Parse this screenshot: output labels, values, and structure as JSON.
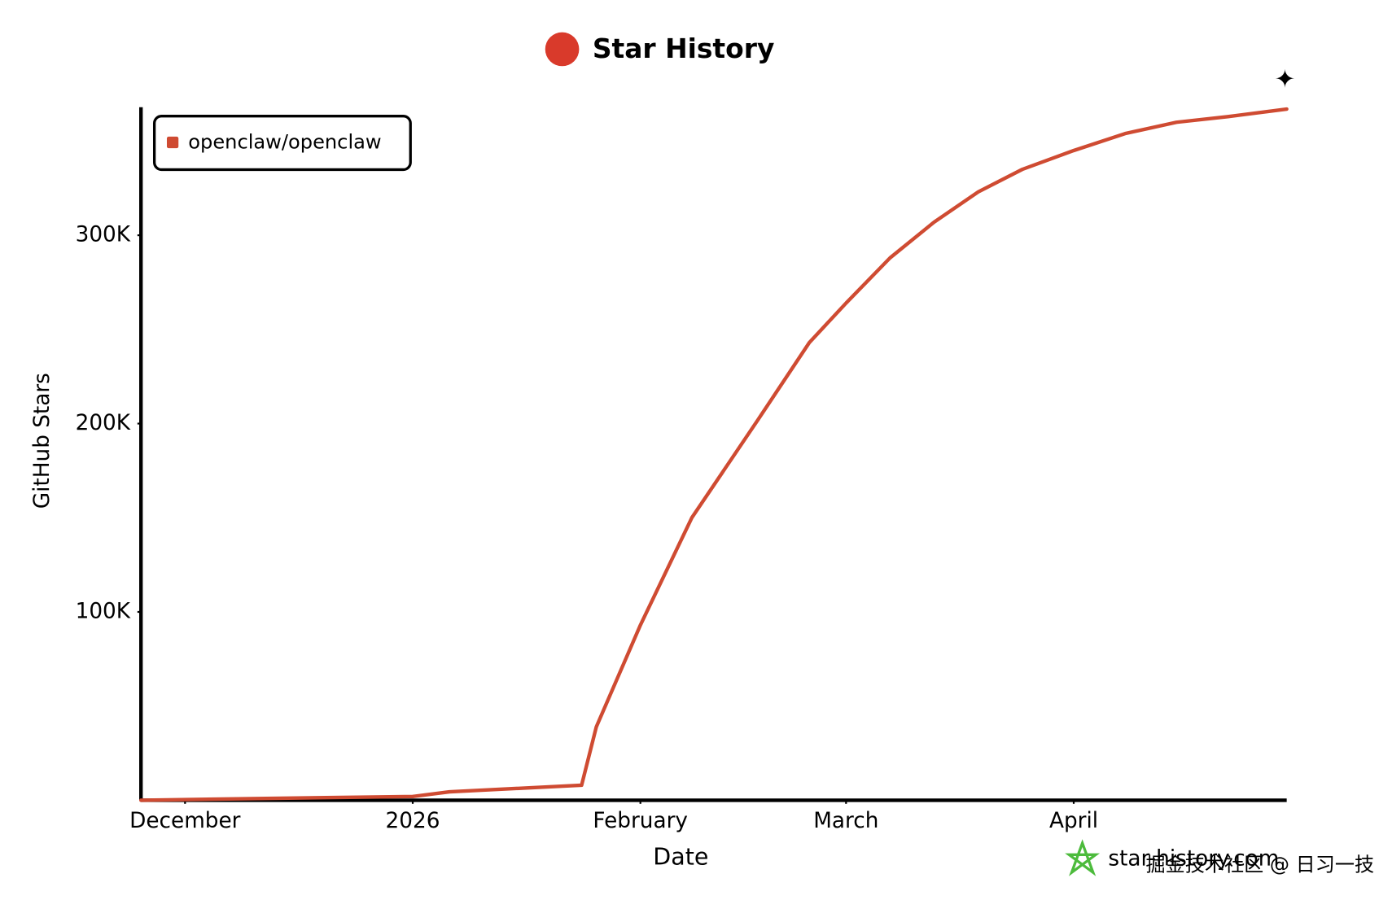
{
  "chart_data": {
    "type": "line",
    "title": "Star History",
    "xlabel": "Date",
    "ylabel": "GitHub Stars",
    "x": [
      "2025-11-25",
      "2025-12-12",
      "2026-01-01",
      "2026-01-06",
      "2026-01-19",
      "2026-01-24",
      "2026-01-26",
      "2026-02-01",
      "2026-02-08",
      "2026-02-17",
      "2026-02-24",
      "2026-03-01",
      "2026-03-07",
      "2026-03-13",
      "2026-03-19",
      "2026-03-25",
      "2026-04-01",
      "2026-04-08",
      "2026-04-15",
      "2026-04-22",
      "2026-04-30"
    ],
    "series": [
      {
        "name": "openclaw/openclaw",
        "color": "#cf4b32",
        "values": [
          0,
          1000,
          2000,
          4500,
          7000,
          8000,
          39000,
          93000,
          150000,
          202000,
          243000,
          264000,
          288000,
          307000,
          323000,
          335000,
          345000,
          354000,
          360000,
          363000,
          367000
        ]
      }
    ],
    "xlim": [
      "2025-11-25",
      "2026-04-30"
    ],
    "xticks": [
      {
        "value": "2025-12-01",
        "label": "December"
      },
      {
        "value": "2026-01-01",
        "label": "2026"
      },
      {
        "value": "2026-02-01",
        "label": "February"
      },
      {
        "value": "2026-03-01",
        "label": "March"
      },
      {
        "value": "2026-04-01",
        "label": "April"
      }
    ],
    "ylim": [
      0,
      368000
    ],
    "yticks": [
      {
        "value": 100000,
        "label": "100K"
      },
      {
        "value": 200000,
        "label": "200K"
      },
      {
        "value": 300000,
        "label": "300K"
      }
    ],
    "legend": "top-left"
  },
  "watermark": "star-history.com",
  "credit": "掘金技术社区 @ 日习一技"
}
